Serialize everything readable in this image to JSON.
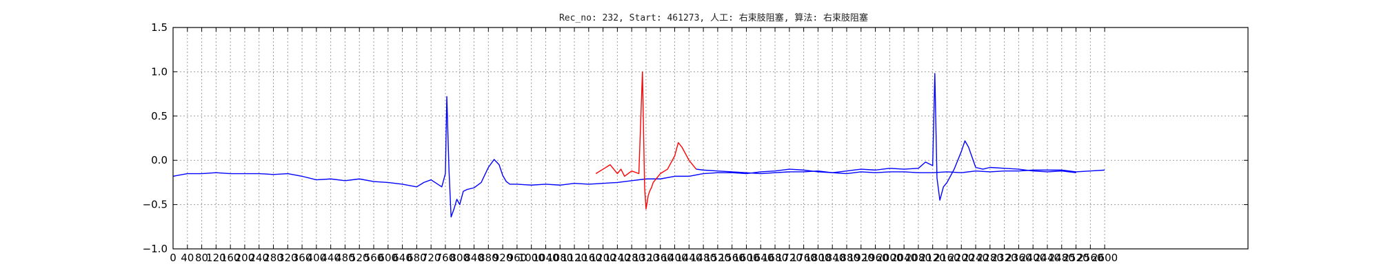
{
  "chart_data": {
    "type": "line",
    "title": "Rec_no: 232, Start: 461273, 人工: 右束肢阻塞, 算法: 右束肢阻塞",
    "xlabel": "",
    "ylabel": "",
    "xlim": [
      0,
      1500
    ],
    "ylim": [
      -1.0,
      1.5
    ],
    "y_ticks": [
      -1.0,
      -0.5,
      0.0,
      0.5,
      1.0,
      1.5
    ],
    "y_tick_labels": [
      "−1.0",
      "−0.5",
      "0.0",
      "0.5",
      "1.0",
      "1.5"
    ],
    "x_ticks": [
      0,
      20,
      40,
      60,
      80,
      100,
      120,
      140,
      160,
      180,
      200,
      220,
      240,
      260,
      280,
      300,
      320,
      340,
      360,
      380,
      400,
      420,
      440,
      460,
      480,
      500,
      520,
      540,
      560,
      580,
      600,
      620,
      640,
      660,
      680,
      700,
      720,
      740,
      760,
      780,
      800,
      820,
      840,
      860,
      880,
      900,
      920,
      940,
      960,
      980,
      1000,
      1020,
      1040,
      1060,
      1080,
      1100,
      1120,
      1140,
      1160,
      1180,
      1200,
      1220,
      1240,
      1260,
      1280,
      1300
    ],
    "x_tick_labels": [
      "0",
      "40",
      "80",
      "120",
      "160",
      "200",
      "240",
      "280",
      "320",
      "360",
      "400",
      "440",
      "480",
      "520",
      "560",
      "600",
      "640",
      "680",
      "720",
      "760",
      "800",
      "840",
      "880",
      "920",
      "960",
      "1000",
      "1040",
      "1080",
      "1120",
      "1160",
      "1200",
      "1240",
      "1280",
      "1320",
      "1360",
      "1400",
      "1440",
      "1480",
      "1520",
      "1560",
      "1600",
      "1640",
      "1680",
      "1720",
      "1760",
      "1800",
      "1840",
      "1880",
      "1920",
      "1960",
      "2000",
      "2040",
      "2080",
      "2120",
      "2160",
      "2200",
      "2240",
      "2280",
      "2320",
      "2360",
      "2400",
      "2440",
      "2480",
      "2520",
      "2560",
      "2600"
    ],
    "grid": true,
    "series": [
      {
        "color": "#0000ff",
        "x": [
          0,
          20,
          40,
          60,
          80,
          100,
          120,
          140,
          160,
          180,
          200,
          220,
          240,
          260,
          280,
          300,
          320,
          340,
          350,
          360,
          375,
          380,
          382,
          385,
          388,
          392,
          396,
          400,
          405,
          410,
          420,
          430,
          440,
          448,
          455,
          460,
          465,
          470,
          480,
          500,
          520,
          540,
          560,
          580,
          600,
          620,
          640,
          660,
          680,
          700,
          720,
          740,
          760,
          780,
          800,
          820,
          840,
          860,
          880,
          900,
          920,
          940,
          960,
          980,
          1000,
          1020,
          1040,
          1060,
          1080,
          1100,
          1120,
          1140,
          1160,
          1180,
          1200,
          1220,
          1240,
          1260,
          1280,
          1300
        ],
        "y": [
          -0.18,
          -0.15,
          -0.15,
          -0.14,
          -0.15,
          -0.15,
          -0.15,
          -0.16,
          -0.15,
          -0.18,
          -0.22,
          -0.21,
          -0.23,
          -0.21,
          -0.24,
          -0.25,
          -0.27,
          -0.3,
          -0.25,
          -0.22,
          -0.3,
          -0.15,
          0.72,
          -0.1,
          -0.64,
          -0.55,
          -0.44,
          -0.5,
          -0.35,
          -0.33,
          -0.31,
          -0.25,
          -0.08,
          0.01,
          -0.05,
          -0.17,
          -0.24,
          -0.27,
          -0.27,
          -0.28,
          -0.27,
          -0.28,
          -0.26,
          -0.27,
          -0.26,
          -0.25,
          -0.23,
          -0.21,
          -0.21,
          -0.18,
          -0.18,
          -0.15,
          -0.14,
          -0.14,
          -0.15,
          -0.13,
          -0.12,
          -0.1,
          -0.11,
          -0.13,
          -0.14,
          -0.15,
          -0.13,
          -0.14,
          -0.13,
          -0.13,
          -0.14,
          -0.14,
          -0.13,
          -0.14,
          -0.12,
          -0.13,
          -0.12,
          -0.12,
          -0.11,
          -0.11,
          -0.11,
          -0.13,
          -0.12,
          -0.11
        ]
      },
      {
        "color": "#ff0000",
        "x": [
          590,
          600,
          610,
          620,
          625,
          630,
          640,
          650,
          655,
          658,
          660,
          663,
          665,
          668,
          670,
          680,
          690,
          700,
          705,
          710,
          720,
          730
        ],
        "y": [
          -0.15,
          -0.1,
          -0.05,
          -0.15,
          -0.1,
          -0.18,
          -0.12,
          -0.15,
          1.0,
          -0.3,
          -0.55,
          -0.4,
          -0.35,
          -0.3,
          -0.25,
          -0.15,
          -0.1,
          0.05,
          0.2,
          0.15,
          0.0,
          -0.1
        ]
      },
      {
        "color": "#0000ff",
        "x": [
          730,
          740,
          760,
          780,
          800,
          820,
          840,
          860,
          880,
          900,
          920,
          940,
          960,
          980,
          1000,
          1020,
          1040,
          1050,
          1060,
          1063,
          1066,
          1070,
          1075,
          1080,
          1090,
          1100,
          1105,
          1110,
          1120,
          1130,
          1140,
          1160,
          1180,
          1200,
          1220,
          1240,
          1260
        ],
        "y": [
          -0.1,
          -0.11,
          -0.12,
          -0.13,
          -0.14,
          -0.15,
          -0.14,
          -0.13,
          -0.13,
          -0.12,
          -0.14,
          -0.12,
          -0.1,
          -0.11,
          -0.09,
          -0.1,
          -0.09,
          -0.02,
          -0.06,
          0.98,
          -0.2,
          -0.45,
          -0.3,
          -0.25,
          -0.1,
          0.1,
          0.22,
          0.15,
          -0.08,
          -0.1,
          -0.08,
          -0.09,
          -0.1,
          -0.12,
          -0.13,
          -0.12,
          -0.14
        ]
      }
    ]
  }
}
